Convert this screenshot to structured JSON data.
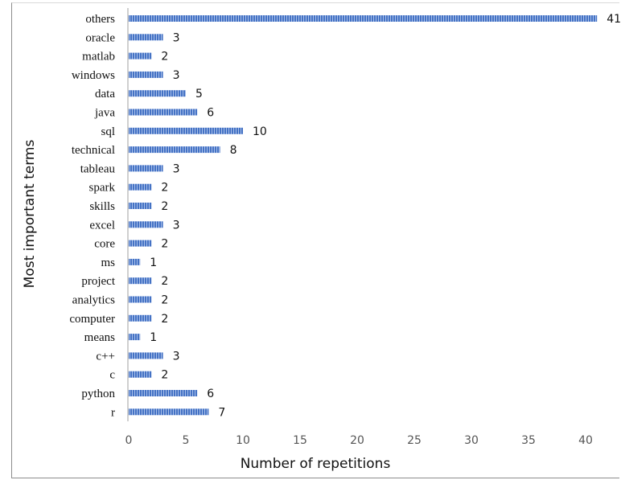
{
  "chart_data": {
    "type": "bar",
    "orientation": "horizontal",
    "categories": [
      "others",
      "oracle",
      "matlab",
      "windows",
      "data",
      "java",
      "sql",
      "technical",
      "tableau",
      "spark",
      "skills",
      "excel",
      "core",
      "ms",
      "project",
      "analytics",
      "computer",
      "means",
      "c++",
      "c",
      "python",
      "r"
    ],
    "values": [
      41,
      3,
      2,
      3,
      5,
      6,
      10,
      8,
      3,
      2,
      2,
      3,
      2,
      1,
      2,
      2,
      2,
      1,
      3,
      2,
      6,
      7
    ],
    "xlabel": "Number of repetitions",
    "ylabel": "Most important terms",
    "xlim": [
      0,
      42
    ],
    "xticks": [
      "0",
      "5",
      "10",
      "15",
      "20",
      "25",
      "30",
      "35",
      "40"
    ],
    "grid": false,
    "bar_color": "#4472c4",
    "bar_stripe_color": "#a9c0ea"
  }
}
